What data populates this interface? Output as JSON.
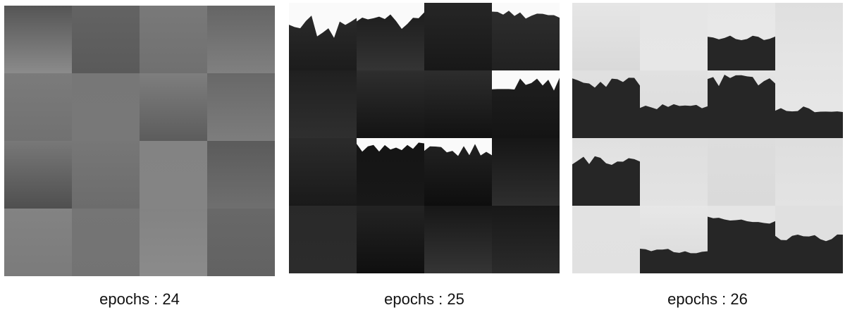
{
  "panels": [
    {
      "caption": "epochs : 24"
    },
    {
      "caption": "epochs : 25"
    },
    {
      "caption": "epochs : 26"
    }
  ]
}
